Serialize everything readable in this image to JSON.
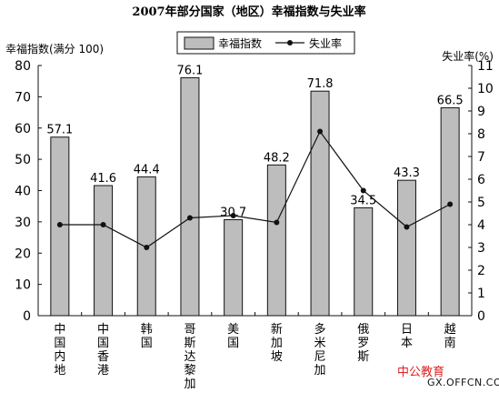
{
  "chart_data": {
    "type": "bar+line",
    "title": "2007年部分国家（地区）幸福指数与失业率",
    "categories": [
      "中国内地",
      "中国香港",
      "韩国",
      "哥斯达黎加",
      "美国",
      "新加坡",
      "多米尼加",
      "俄罗斯",
      "日本",
      "越南"
    ],
    "series": [
      {
        "name": "幸福指数",
        "type": "bar",
        "axis": "left",
        "values": [
          57.1,
          41.6,
          44.4,
          76.1,
          30.7,
          48.2,
          71.8,
          34.5,
          43.3,
          66.5
        ],
        "color": "#bdbdbd"
      },
      {
        "name": "失业率",
        "type": "line",
        "axis": "right",
        "values": [
          4.0,
          4.0,
          3.0,
          4.3,
          4.4,
          4.1,
          8.1,
          5.5,
          3.9,
          4.9
        ],
        "color": "#111111"
      }
    ],
    "ylabel": "幸福指数(满分 100)",
    "y2label": "失业率(%)",
    "ylim": [
      0,
      80
    ],
    "y2lim": [
      0,
      11
    ],
    "yticks": [
      "0",
      "10",
      "20",
      "30",
      "40",
      "50",
      "60",
      "70",
      "80"
    ],
    "y2ticks": [
      "0",
      "1",
      "2",
      "3",
      "4",
      "5",
      "6",
      "7",
      "8",
      "9",
      "10",
      "11"
    ],
    "data_labels": [
      "57.1",
      "41.6",
      "44.4",
      "76.1",
      "30.7",
      "48.2",
      "71.8",
      "34.5",
      "43.3",
      "66.5"
    ],
    "legend": {
      "position": "top-center",
      "items": [
        "幸福指数",
        "失业率"
      ]
    },
    "grid": false
  },
  "watermark": {
    "brand": "中公教育",
    "url": "GX.OFFCN.COM"
  }
}
